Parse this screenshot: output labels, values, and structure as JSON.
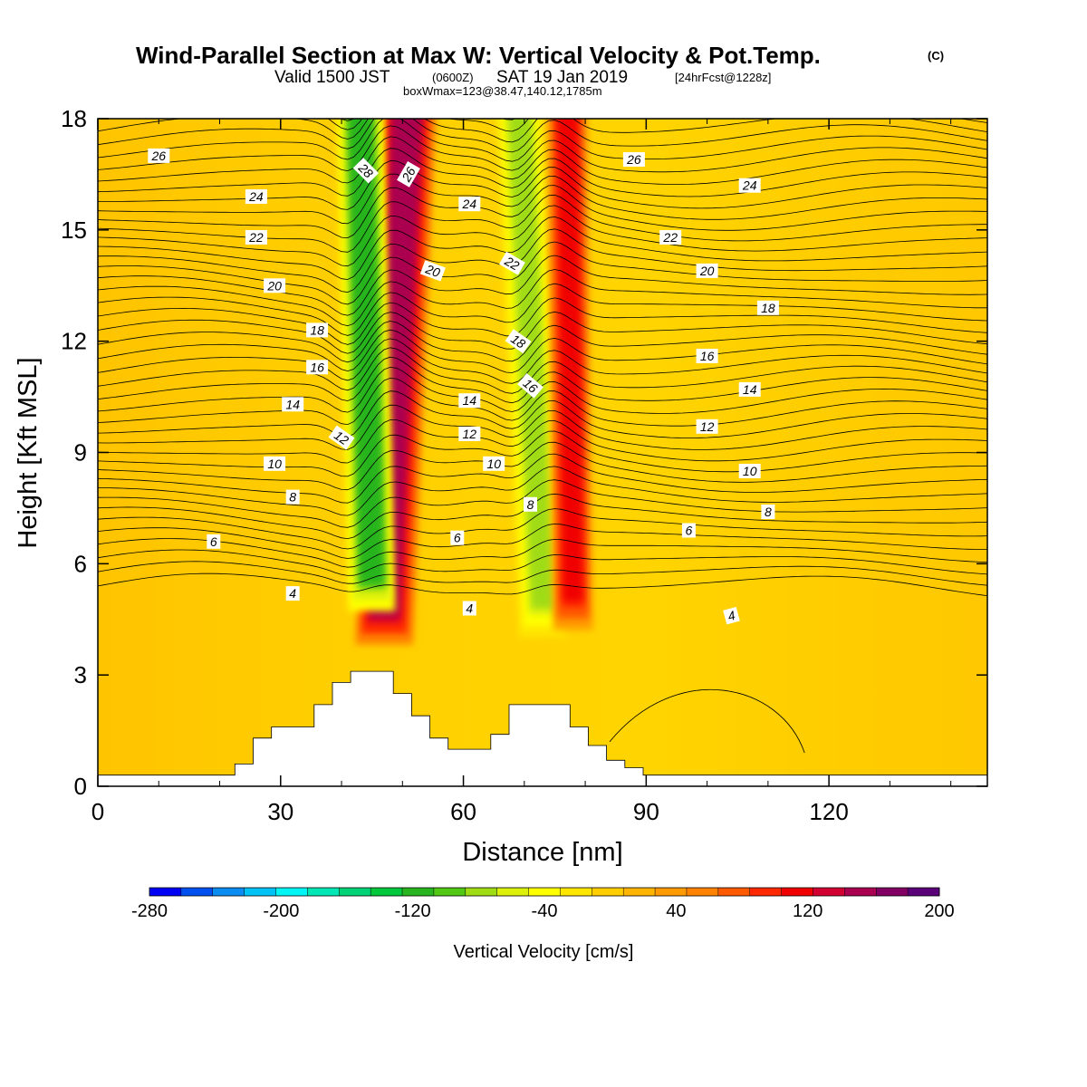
{
  "title": {
    "main": "Wind-Parallel Section at Max W: Vertical Velocity & Pot.Temp.",
    "copyright": "(C)",
    "valid_prefix": "Valid 1500 JST",
    "utc": "(0600Z)",
    "valid_date": "SAT 19 Jan 2019",
    "forecast": "[24hrFcst@1228z]",
    "boxwmax": "boxWmax=123@38.47,140.12,1785m"
  },
  "colors": {
    "terrain": "#ffffff",
    "background_field": "#ffd000",
    "contour_line": "#000000"
  },
  "chart_data": {
    "type": "heatmap",
    "xlabel": "Distance [nm]",
    "ylabel": "Height [Kft MSL]",
    "xlim": [
      0,
      146
    ],
    "ylim": [
      0,
      18
    ],
    "xticks": [
      0,
      30,
      60,
      90,
      120
    ],
    "yticks": [
      0,
      3,
      6,
      9,
      12,
      15,
      18
    ],
    "colorbar": {
      "title": "Vertical Velocity [cm/s]",
      "tick_labels": [
        "-280",
        "-200",
        "-120",
        "-40",
        "40",
        "120",
        "200"
      ],
      "bounds": [
        -280,
        200
      ],
      "colors": [
        "#0000f5",
        "#0050f0",
        "#0a8cf0",
        "#00c3f5",
        "#00f5f5",
        "#00e6b4",
        "#00d278",
        "#00c83c",
        "#28b41e",
        "#50c814",
        "#a0dc14",
        "#dcf00a",
        "#ffff00",
        "#ffe600",
        "#ffcd00",
        "#ffb400",
        "#ff9b00",
        "#ff8200",
        "#ff5a00",
        "#ff2800",
        "#f00000",
        "#d20032",
        "#aa0050",
        "#820064",
        "#5a0078"
      ]
    },
    "features": [
      {
        "kind": "updraft_core",
        "x_top": 51,
        "x_bottom": 47,
        "width": 3.2,
        "z_base": 4.6,
        "z_top": 18,
        "w": 150
      },
      {
        "kind": "downdraft_core",
        "x_top": 43,
        "x_bottom": 45,
        "width": 2.6,
        "z_base": 5.5,
        "z_top": 18,
        "w": -110
      },
      {
        "kind": "downdraft_core",
        "x_top": 69,
        "x_bottom": 73,
        "width": 2.6,
        "z_base": 4.8,
        "z_top": 18,
        "w": -75
      },
      {
        "kind": "updraft_core",
        "x_top": 77,
        "x_bottom": 78,
        "width": 2.2,
        "z_base": 5.0,
        "z_top": 18,
        "w": 110
      }
    ],
    "terrain_profile": {
      "x": [
        0,
        22.5,
        22.5,
        25.5,
        25.5,
        28.5,
        28.5,
        35.5,
        35.5,
        38.5,
        38.5,
        41.5,
        41.5,
        48.5,
        48.5,
        51.5,
        51.5,
        54.5,
        54.5,
        57.5,
        57.5,
        60.5,
        60.5,
        64.5,
        64.5,
        67.5,
        67.5,
        77.5,
        77.5,
        80.5,
        80.5,
        83.5,
        83.5,
        86.5,
        86.5,
        89.5,
        89.5,
        146
      ],
      "height": [
        0.3,
        0.3,
        0.6,
        0.6,
        1.3,
        1.3,
        1.6,
        1.6,
        2.2,
        2.2,
        2.8,
        2.8,
        3.1,
        3.1,
        2.5,
        2.5,
        1.9,
        1.9,
        1.3,
        1.3,
        1.0,
        1.0,
        1.0,
        1.0,
        1.4,
        1.4,
        2.2,
        2.2,
        1.6,
        1.6,
        1.1,
        1.1,
        0.7,
        0.7,
        0.5,
        0.5,
        0.3,
        0.3
      ]
    },
    "isentropes": {
      "levels": [
        4,
        6,
        8,
        10,
        12,
        14,
        16,
        18,
        20,
        22,
        24,
        26,
        28
      ],
      "labels": [
        {
          "text": "26",
          "x": 10,
          "z": 17.0,
          "angle": 0
        },
        {
          "text": "28",
          "x": 44,
          "z": 16.6,
          "angle": 45
        },
        {
          "text": "26",
          "x": 51,
          "z": 16.5,
          "angle": -60
        },
        {
          "text": "24",
          "x": 26,
          "z": 15.9,
          "angle": 0
        },
        {
          "text": "24",
          "x": 61,
          "z": 15.7,
          "angle": 0
        },
        {
          "text": "26",
          "x": 88,
          "z": 16.9,
          "angle": 0
        },
        {
          "text": "24",
          "x": 107,
          "z": 16.2,
          "angle": 0
        },
        {
          "text": "22",
          "x": 26,
          "z": 14.8,
          "angle": 0
        },
        {
          "text": "22",
          "x": 68,
          "z": 14.1,
          "angle": 30
        },
        {
          "text": "22",
          "x": 94,
          "z": 14.8,
          "angle": 0
        },
        {
          "text": "20",
          "x": 29,
          "z": 13.5,
          "angle": 0
        },
        {
          "text": "20",
          "x": 55,
          "z": 13.9,
          "angle": 20
        },
        {
          "text": "20",
          "x": 100,
          "z": 13.9,
          "angle": 0
        },
        {
          "text": "18",
          "x": 110,
          "z": 12.9,
          "angle": 0
        },
        {
          "text": "18",
          "x": 36,
          "z": 12.3,
          "angle": 0
        },
        {
          "text": "18",
          "x": 69,
          "z": 12.0,
          "angle": 35
        },
        {
          "text": "16",
          "x": 36,
          "z": 11.3,
          "angle": 0
        },
        {
          "text": "16",
          "x": 71,
          "z": 10.8,
          "angle": 40
        },
        {
          "text": "16",
          "x": 100,
          "z": 11.6,
          "angle": 0
        },
        {
          "text": "14",
          "x": 32,
          "z": 10.3,
          "angle": 0
        },
        {
          "text": "14",
          "x": 61,
          "z": 10.4,
          "angle": 0
        },
        {
          "text": "14",
          "x": 107,
          "z": 10.7,
          "angle": 0
        },
        {
          "text": "12",
          "x": 40,
          "z": 9.4,
          "angle": 35
        },
        {
          "text": "12",
          "x": 61,
          "z": 9.5,
          "angle": 0
        },
        {
          "text": "12",
          "x": 100,
          "z": 9.7,
          "angle": 0
        },
        {
          "text": "10",
          "x": 29,
          "z": 8.7,
          "angle": 0
        },
        {
          "text": "10",
          "x": 65,
          "z": 8.7,
          "angle": 0
        },
        {
          "text": "10",
          "x": 107,
          "z": 8.5,
          "angle": 0
        },
        {
          "text": "8",
          "x": 32,
          "z": 7.8,
          "angle": 0
        },
        {
          "text": "8",
          "x": 71,
          "z": 7.6,
          "angle": 0
        },
        {
          "text": "8",
          "x": 110,
          "z": 7.4,
          "angle": 0
        },
        {
          "text": "6",
          "x": 19,
          "z": 6.6,
          "angle": 0
        },
        {
          "text": "6",
          "x": 59,
          "z": 6.7,
          "angle": 0
        },
        {
          "text": "6",
          "x": 97,
          "z": 6.9,
          "angle": 0
        },
        {
          "text": "4",
          "x": 32,
          "z": 5.2,
          "angle": 0
        },
        {
          "text": "4",
          "x": 61,
          "z": 4.8,
          "angle": 0
        },
        {
          "text": "4",
          "x": 104,
          "z": 4.6,
          "angle": -15
        }
      ]
    }
  }
}
